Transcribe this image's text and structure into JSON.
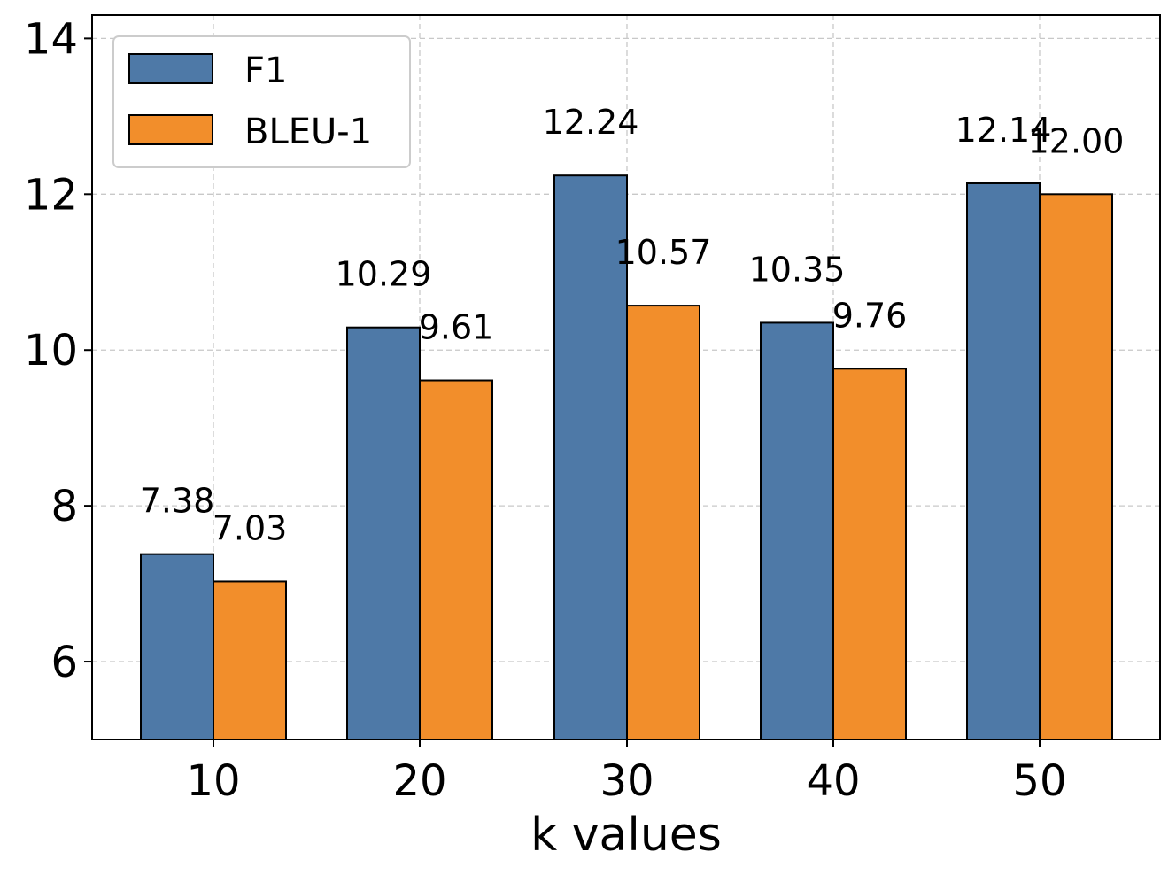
{
  "chart_data": {
    "type": "bar",
    "title": "",
    "xlabel": "k values",
    "ylabel": "",
    "categories": [
      "10",
      "20",
      "30",
      "40",
      "50"
    ],
    "series": [
      {
        "name": "F1",
        "color": "#4e79a7",
        "values": [
          7.38,
          10.29,
          12.24,
          10.35,
          12.14
        ],
        "labels": [
          "7.38",
          "10.29",
          "12.24",
          "10.35",
          "12.14"
        ]
      },
      {
        "name": "BLEU-1",
        "color": "#f28e2b",
        "values": [
          7.03,
          9.61,
          10.57,
          9.76,
          12.0
        ],
        "labels": [
          "7.03",
          "9.61",
          "10.57",
          "9.76",
          "12.00"
        ]
      }
    ],
    "ylim": [
      5,
      14.3
    ],
    "yticks": [
      6,
      8,
      10,
      12,
      14
    ],
    "grid": true,
    "legend_position": "top-left"
  }
}
